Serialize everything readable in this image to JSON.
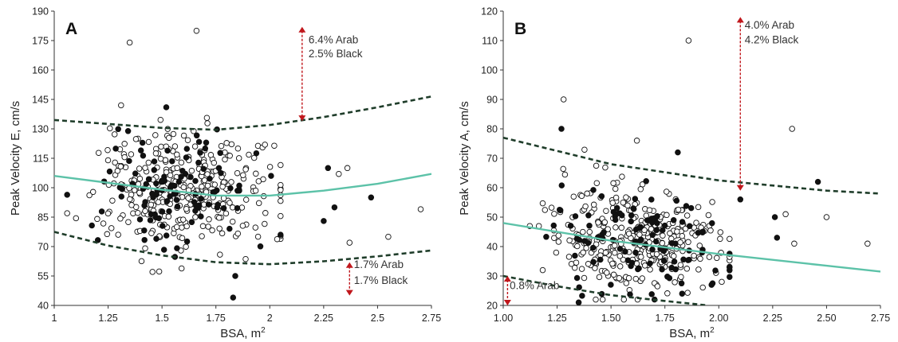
{
  "colors": {
    "median": "#5cc2a8",
    "bounds": "#1f3d2a",
    "arrow": "#c0171c",
    "filled": "#111111",
    "open": "#ffffff"
  },
  "chart_data": [
    {
      "type": "scatter",
      "panel_label": "A",
      "xlabel": "BSA, m",
      "xlabel_sup": "2",
      "ylabel": "Peak Velocity E, cm/s",
      "xlim": [
        1,
        2.75
      ],
      "ylim": [
        40,
        190
      ],
      "xticks": [
        "1",
        "1.25",
        "1.5",
        "1.75",
        "2",
        "2.25",
        "2.5",
        "2.75"
      ],
      "yticks": [
        "40",
        "55",
        "70",
        "85",
        "100",
        "115",
        "130",
        "145",
        "160",
        "175",
        "190"
      ],
      "curves": {
        "upper": [
          [
            1.0,
            134.5
          ],
          [
            1.5,
            130.5
          ],
          [
            1.75,
            129.5
          ],
          [
            2.0,
            132
          ],
          [
            2.25,
            136
          ],
          [
            2.5,
            141
          ],
          [
            2.75,
            146.5
          ]
        ],
        "median": [
          [
            1.0,
            106
          ],
          [
            1.5,
            99
          ],
          [
            1.75,
            96
          ],
          [
            2.0,
            96
          ],
          [
            2.25,
            98.5
          ],
          [
            2.5,
            102
          ],
          [
            2.75,
            107
          ]
        ],
        "lower": [
          [
            1.0,
            77.5
          ],
          [
            1.25,
            70.5
          ],
          [
            1.5,
            65.5
          ],
          [
            1.75,
            62
          ],
          [
            2.0,
            61
          ],
          [
            2.25,
            62.5
          ],
          [
            2.5,
            65
          ],
          [
            2.75,
            68
          ]
        ]
      },
      "annotations": [
        {
          "text": "6.4% Arab",
          "x": 2.18,
          "y": 173.5
        },
        {
          "text": "2.5% Black",
          "x": 2.18,
          "y": 166.5
        },
        {
          "text": "1.7% Arab",
          "x": 2.39,
          "y": 59
        },
        {
          "text": "1.7% Black",
          "x": 2.39,
          "y": 51
        }
      ],
      "arrows": [
        {
          "x": 2.15,
          "y_from": 134,
          "y_to": 182
        },
        {
          "x": 2.37,
          "y_from": 45,
          "y_to": 62
        }
      ],
      "cloud": {
        "x_mean": 1.6,
        "x_sd": 0.2,
        "y_median": [
          [
            1.0,
            106
          ],
          [
            1.5,
            99
          ],
          [
            2.0,
            96
          ],
          [
            2.75,
            107
          ]
        ],
        "y_sd": 15,
        "n_open": 330,
        "n_filled": 110,
        "seed": 7
      },
      "outliers": [
        {
          "x": 1.35,
          "y": 174,
          "filled": false
        },
        {
          "x": 1.66,
          "y": 180,
          "filled": false
        },
        {
          "x": 1.83,
          "y": 44,
          "filled": true
        },
        {
          "x": 1.84,
          "y": 55,
          "filled": true
        },
        {
          "x": 2.7,
          "y": 89,
          "filled": false
        },
        {
          "x": 2.55,
          "y": 75,
          "filled": false
        },
        {
          "x": 2.47,
          "y": 95,
          "filled": true
        },
        {
          "x": 2.3,
          "y": 90,
          "filled": true
        },
        {
          "x": 2.32,
          "y": 107,
          "filled": false
        },
        {
          "x": 2.37,
          "y": 72,
          "filled": false
        },
        {
          "x": 2.27,
          "y": 110,
          "filled": true
        },
        {
          "x": 2.25,
          "y": 83,
          "filled": true
        },
        {
          "x": 2.36,
          "y": 110,
          "filled": false
        },
        {
          "x": 1.06,
          "y": 87,
          "filled": false
        },
        {
          "x": 1.31,
          "y": 142,
          "filled": false
        },
        {
          "x": 1.52,
          "y": 141,
          "filled": true
        }
      ]
    },
    {
      "type": "scatter",
      "panel_label": "B",
      "xlabel": "BSA, m",
      "xlabel_sup": "2",
      "ylabel": "Peak Velocity A, cm/s",
      "xlim": [
        1,
        2.75
      ],
      "ylim": [
        20,
        120
      ],
      "xticks": [
        "1.00",
        "1.25",
        "1.50",
        "1.75",
        "2.00",
        "2.25",
        "2.50",
        "2.75"
      ],
      "yticks": [
        "20",
        "30",
        "40",
        "50",
        "60",
        "70",
        "80",
        "90",
        "100",
        "110",
        "120"
      ],
      "curves": {
        "upper": [
          [
            1.0,
            77
          ],
          [
            1.5,
            68
          ],
          [
            2.0,
            62.5
          ],
          [
            2.5,
            59
          ],
          [
            2.75,
            58
          ]
        ],
        "median": [
          [
            1.0,
            48
          ],
          [
            1.5,
            42
          ],
          [
            2.0,
            37.5
          ],
          [
            2.5,
            33.5
          ],
          [
            2.75,
            31.5
          ]
        ],
        "lower": [
          [
            1.0,
            30
          ],
          [
            1.25,
            26.5
          ],
          [
            1.5,
            23.5
          ],
          [
            1.75,
            21.5
          ],
          [
            1.95,
            20
          ]
        ]
      },
      "annotations": [
        {
          "text": "4.0% Arab",
          "x": 2.12,
          "y": 114
        },
        {
          "text": "4.2% Black",
          "x": 2.12,
          "y": 109
        },
        {
          "text": "0.8% Arab",
          "x": 1.03,
          "y": 25.5
        }
      ],
      "arrows": [
        {
          "x": 2.1,
          "y_from": 59,
          "y_to": 118
        },
        {
          "x": 1.02,
          "y_from": 20,
          "y_to": 30
        }
      ],
      "cloud": {
        "x_mean": 1.62,
        "x_sd": 0.2,
        "y_median": [
          [
            1.0,
            48
          ],
          [
            1.5,
            43
          ],
          [
            2.0,
            40
          ],
          [
            2.75,
            38
          ]
        ],
        "y_sd": 9,
        "n_open": 330,
        "n_filled": 110,
        "seed": 19
      },
      "outliers": [
        {
          "x": 1.86,
          "y": 110,
          "filled": false
        },
        {
          "x": 1.28,
          "y": 90,
          "filled": false
        },
        {
          "x": 2.34,
          "y": 80,
          "filled": false
        },
        {
          "x": 1.27,
          "y": 80,
          "filled": true
        },
        {
          "x": 2.46,
          "y": 62,
          "filled": true
        },
        {
          "x": 2.69,
          "y": 41,
          "filled": false
        },
        {
          "x": 2.5,
          "y": 50,
          "filled": false
        },
        {
          "x": 2.35,
          "y": 41,
          "filled": false
        },
        {
          "x": 2.31,
          "y": 51,
          "filled": false
        },
        {
          "x": 2.27,
          "y": 43,
          "filled": true
        },
        {
          "x": 2.26,
          "y": 50,
          "filled": true
        },
        {
          "x": 2.1,
          "y": 56,
          "filled": true
        },
        {
          "x": 1.35,
          "y": 21,
          "filled": true
        },
        {
          "x": 1.83,
          "y": 24,
          "filled": true
        },
        {
          "x": 1.62,
          "y": 76,
          "filled": false
        },
        {
          "x": 1.81,
          "y": 72,
          "filled": true
        }
      ]
    }
  ]
}
